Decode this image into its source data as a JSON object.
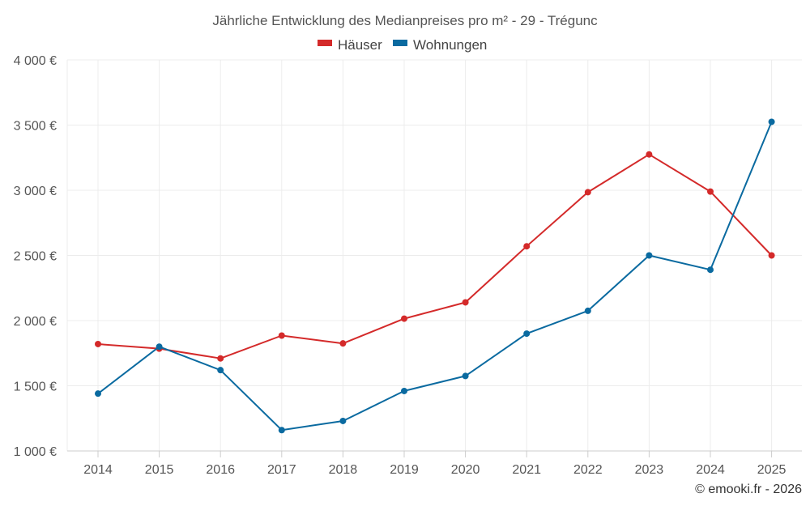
{
  "chart_data": {
    "type": "line",
    "title": "Jährliche Entwicklung des Medianpreises pro m² - 29 - Trégunc",
    "xlabel": "",
    "ylabel": "",
    "categories": [
      "2014",
      "2015",
      "2016",
      "2017",
      "2018",
      "2019",
      "2020",
      "2021",
      "2022",
      "2023",
      "2024",
      "2025"
    ],
    "ylim": [
      1000,
      4000
    ],
    "yticks": [
      1000,
      1500,
      2000,
      2500,
      3000,
      3500,
      4000
    ],
    "ytick_labels": [
      "1 000 €",
      "1 500 €",
      "2 000 €",
      "2 500 €",
      "3 000 €",
      "3 500 €",
      "4 000 €"
    ],
    "grid": true,
    "legend_position": "top-center",
    "series": [
      {
        "name": "Häuser",
        "color": "#d42a2a",
        "values": [
          1820,
          1785,
          1710,
          1885,
          1825,
          2015,
          2140,
          2570,
          2985,
          3275,
          2990,
          2500
        ]
      },
      {
        "name": "Wohnungen",
        "color": "#0a6aa0",
        "values": [
          1440,
          1800,
          1620,
          1160,
          1230,
          1460,
          1575,
          1900,
          2075,
          2500,
          2390,
          3525
        ]
      }
    ]
  },
  "credit": "© emooki.fr - 2026"
}
